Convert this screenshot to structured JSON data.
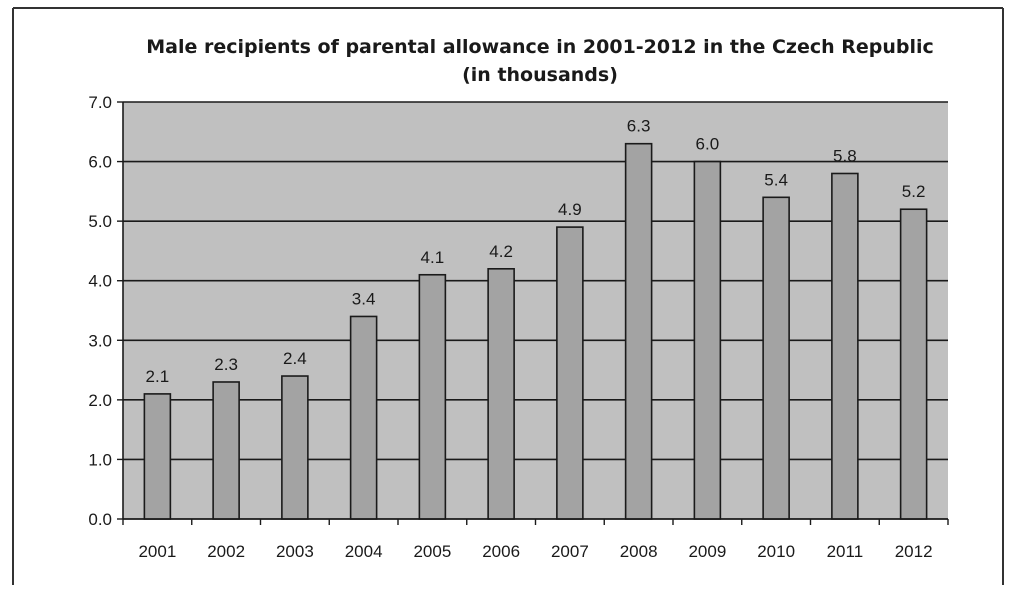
{
  "chart_data": {
    "type": "bar",
    "title": "Male recipients of parental allowance in 2001-2012 in the Czech Republic",
    "subtitle": "(in thousands)",
    "xlabel": "",
    "ylabel": "",
    "categories": [
      "2001",
      "2002",
      "2003",
      "2004",
      "2005",
      "2006",
      "2007",
      "2008",
      "2009",
      "2010",
      "2011",
      "2012"
    ],
    "values": [
      2.1,
      2.3,
      2.4,
      3.4,
      4.1,
      4.2,
      4.9,
      6.3,
      6.0,
      5.4,
      5.8,
      5.2
    ],
    "data_labels": [
      "2.1",
      "2.3",
      "2.4",
      "3.4",
      "4.1",
      "4.2",
      "4.9",
      "6.3",
      "6.0",
      "5.4",
      "5.8",
      "5.2"
    ],
    "ylim": [
      0,
      7
    ],
    "yticks": [
      0,
      1,
      2,
      3,
      4,
      5,
      6,
      7
    ],
    "ytick_labels": [
      "0.0",
      "1.0",
      "2.0",
      "3.0",
      "4.0",
      "5.0",
      "6.0",
      "7.0"
    ],
    "grid": true,
    "legend": "none",
    "colors": {
      "plot_background": "#c0c0c0",
      "bar_fill": "#a3a3a3",
      "bar_stroke": "#1a1a1a",
      "gridline": "#1a1a1a",
      "frame_border": "#333333"
    }
  }
}
